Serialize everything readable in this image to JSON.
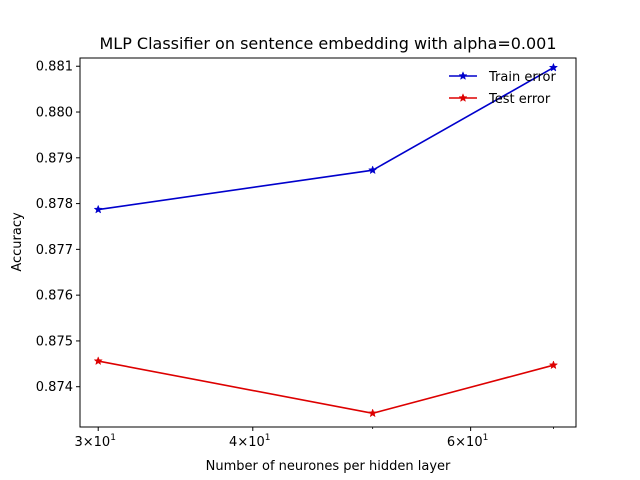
{
  "chart_data": {
    "type": "line",
    "title": "MLP Classifier on sentence embedding with alpha=0.001",
    "xlabel": "Number of neurones per hidden layer",
    "ylabel": "Accuracy",
    "x_scale": "log",
    "xlim": [
      29.0,
      73.0
    ],
    "ylim": [
      0.87312,
      0.88118
    ],
    "x_ticks": [
      {
        "value": 30,
        "label_base": "3×10",
        "label_exp": "1"
      },
      {
        "value": 40,
        "label_base": "4×10",
        "label_exp": "1"
      },
      {
        "value": 60,
        "label_base": "6×10",
        "label_exp": "1"
      }
    ],
    "y_ticks": [
      {
        "value": 0.874,
        "label": "0.874"
      },
      {
        "value": 0.875,
        "label": "0.875"
      },
      {
        "value": 0.876,
        "label": "0.876"
      },
      {
        "value": 0.877,
        "label": "0.877"
      },
      {
        "value": 0.878,
        "label": "0.878"
      },
      {
        "value": 0.879,
        "label": "0.879"
      },
      {
        "value": 0.88,
        "label": "0.880"
      },
      {
        "value": 0.881,
        "label": "0.881"
      }
    ],
    "grid": false,
    "legend_position": "top-right",
    "series": [
      {
        "name": "Train error",
        "color": "#0000cc",
        "marker": "star",
        "x": [
          30,
          50,
          70
        ],
        "y": [
          0.87787,
          0.87873,
          0.88097
        ]
      },
      {
        "name": "Test error",
        "color": "#dd0000",
        "marker": "star",
        "x": [
          30,
          50,
          70
        ],
        "y": [
          0.87456,
          0.87342,
          0.87447
        ]
      }
    ]
  }
}
